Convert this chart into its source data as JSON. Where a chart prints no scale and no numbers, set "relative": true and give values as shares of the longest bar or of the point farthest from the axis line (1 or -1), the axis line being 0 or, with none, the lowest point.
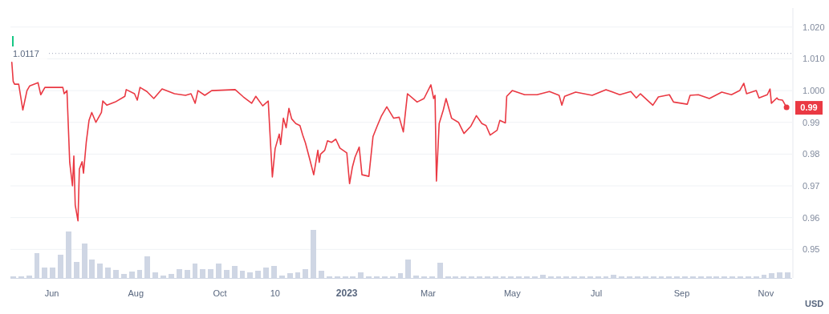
{
  "chart_data": [
    {
      "type": "line",
      "color": "#ea3943",
      "ylabel": "USD",
      "x": [
        "2022-05-03",
        "2022-05-04",
        "2022-05-05",
        "2022-05-08",
        "2022-05-11",
        "2022-05-14",
        "2022-05-16",
        "2022-05-22",
        "2022-05-24",
        "2022-05-27",
        "2022-06-09",
        "2022-06-10",
        "2022-06-12",
        "2022-06-14",
        "2022-06-16",
        "2022-06-17",
        "2022-06-18",
        "2022-06-20",
        "2022-06-21",
        "2022-06-23",
        "2022-06-24",
        "2022-06-26",
        "2022-06-28",
        "2022-06-30",
        "2022-07-03",
        "2022-07-07",
        "2022-07-08",
        "2022-07-11",
        "2022-07-17",
        "2022-07-24",
        "2022-07-25",
        "2022-07-31",
        "2022-08-02",
        "2022-08-04",
        "2022-08-09",
        "2022-08-14",
        "2022-08-20",
        "2022-08-29",
        "2022-09-06",
        "2022-09-10",
        "2022-09-13",
        "2022-09-15",
        "2022-09-20",
        "2022-09-25",
        "2022-10-12",
        "2022-10-18",
        "2022-10-24",
        "2022-10-27",
        "2022-11-01",
        "2022-11-05",
        "2022-11-08",
        "2022-11-10",
        "2022-11-13",
        "2022-11-14",
        "2022-11-16",
        "2022-11-18",
        "2022-11-20",
        "2022-11-22",
        "2022-11-25",
        "2022-11-28",
        "2022-11-30",
        "2022-12-02",
        "2022-12-05",
        "2022-12-08",
        "2022-12-11",
        "2022-12-12",
        "2022-12-13",
        "2022-12-16",
        "2022-12-18",
        "2022-12-21",
        "2022-12-24",
        "2022-12-27",
        "2023-01-01",
        "2023-01-03",
        "2023-01-05",
        "2023-01-07",
        "2023-01-10",
        "2023-01-12",
        "2023-01-17",
        "2023-01-20",
        "2023-01-23",
        "2023-01-26",
        "2023-01-30",
        "2023-02-04",
        "2023-02-08",
        "2023-02-11",
        "2023-02-14",
        "2023-02-21",
        "2023-02-26",
        "2023-03-03",
        "2023-03-05",
        "2023-03-06",
        "2023-03-07",
        "2023-03-09",
        "2023-03-12",
        "2023-03-14",
        "2023-03-18",
        "2023-03-23",
        "2023-03-27",
        "2023-04-01",
        "2023-04-05",
        "2023-04-09",
        "2023-04-12",
        "2023-04-15",
        "2023-04-20",
        "2023-04-22",
        "2023-04-26",
        "2023-04-27",
        "2023-05-01",
        "2023-05-10",
        "2023-05-19",
        "2023-05-28",
        "2023-06-04",
        "2023-06-06",
        "2023-06-08",
        "2023-06-16",
        "2023-06-28",
        "2023-07-08",
        "2023-07-18",
        "2023-07-26",
        "2023-07-30",
        "2023-08-02",
        "2023-08-11",
        "2023-08-15",
        "2023-08-23",
        "2023-08-26",
        "2023-09-05",
        "2023-09-07",
        "2023-09-13",
        "2023-09-21",
        "2023-09-30",
        "2023-10-07",
        "2023-10-13",
        "2023-10-16",
        "2023-10-18",
        "2023-10-25",
        "2023-10-27",
        "2023-11-02",
        "2023-11-04",
        "2023-11-05",
        "2023-11-09",
        "2023-11-10",
        "2023-11-13",
        "2023-11-16"
      ],
      "values": [
        1.0089,
        1.0029,
        1.002,
        1.002,
        0.9939,
        1.0,
        1.0015,
        1.0025,
        0.9987,
        1.001,
        1.001,
        0.999,
        1.0,
        0.9774,
        0.97,
        0.9794,
        0.9639,
        0.959,
        0.9753,
        0.9776,
        0.974,
        0.9837,
        0.9906,
        0.9931,
        0.99,
        0.9931,
        0.9967,
        0.9954,
        0.9964,
        0.9982,
        1.0003,
        0.999,
        0.997,
        1.001,
        0.9997,
        0.9975,
        1.0005,
        0.999,
        0.9985,
        0.999,
        0.996,
        1.0,
        0.9985,
        1.0,
        1.0003,
        0.998,
        0.996,
        0.9982,
        0.9952,
        0.9967,
        0.9728,
        0.9817,
        0.9863,
        0.983,
        0.9913,
        0.9883,
        0.9944,
        0.9911,
        0.9896,
        0.989,
        0.986,
        0.9835,
        0.9786,
        0.9735,
        0.9812,
        0.9774,
        0.98,
        0.9812,
        0.9842,
        0.9837,
        0.9847,
        0.9819,
        0.9804,
        0.9707,
        0.9758,
        0.9791,
        0.9822,
        0.9735,
        0.973,
        0.9855,
        0.9888,
        0.9919,
        0.9949,
        0.9913,
        0.9916,
        0.987,
        0.999,
        0.9964,
        0.9975,
        1.0018,
        0.9975,
        0.9985,
        0.9715,
        0.9896,
        0.9939,
        0.9975,
        0.9913,
        0.99,
        0.9865,
        0.9888,
        0.9921,
        0.9896,
        0.989,
        0.986,
        0.9875,
        0.9906,
        0.9898,
        0.9982,
        1.0,
        0.9987,
        0.9987,
        0.9997,
        0.9985,
        0.9954,
        0.9982,
        0.9995,
        0.9985,
        1.0003,
        0.9987,
        0.9997,
        0.9977,
        0.999,
        0.9954,
        0.998,
        0.9987,
        0.9964,
        0.9957,
        0.9985,
        0.9987,
        0.9975,
        0.9995,
        0.9987,
        1.0,
        1.0023,
        0.999,
        1.0,
        0.9977,
        0.9987,
        1.0005,
        0.996,
        0.9977,
        0.9972,
        0.997,
        0.9947
      ],
      "xlim": [
        "2022-05-02",
        "2023-11-20"
      ],
      "xticks": [
        {
          "value": "2022-06-01",
          "label": "Jun"
        },
        {
          "value": "2022-08-01",
          "label": "Aug"
        },
        {
          "value": "2022-10-01",
          "label": "Oct"
        },
        {
          "value": "2022-11-10",
          "label": "10"
        },
        {
          "value": "2023-01-01",
          "label": "2023"
        },
        {
          "value": "2023-03-01",
          "label": "Mar"
        },
        {
          "value": "2023-05-01",
          "label": "May"
        },
        {
          "value": "2023-07-01",
          "label": "Jul"
        },
        {
          "value": "2023-09-01",
          "label": "Sep"
        },
        {
          "value": "2023-11-01",
          "label": "Nov"
        }
      ],
      "ylim": [
        0.941,
        1.026
      ],
      "yticks": [
        0.95,
        0.96,
        0.97,
        0.98,
        0.99,
        {
          "value": 1.0,
          "label": "1.000"
        },
        {
          "value": 1.01,
          "label": "1.010"
        },
        {
          "value": 1.02,
          "label": "1.020"
        }
      ],
      "grid": "y",
      "ref_lines": [
        {
          "axis": "y",
          "value": 1.0117,
          "label": "1.0117",
          "color": "#a1a7bb",
          "line_style": "dotted"
        }
      ],
      "annotations": [
        {
          "text": "0.99",
          "x": "2023-11-16",
          "y": 0.9947
        }
      ]
    },
    {
      "type": "bar",
      "relative": true,
      "color": "#cfd6e4",
      "categories": [
        null,
        null,
        null,
        null,
        null,
        null,
        null,
        null,
        null,
        null,
        null,
        null,
        null,
        null,
        null,
        null,
        null,
        null,
        null,
        null,
        null,
        null,
        null,
        null,
        null,
        null,
        null,
        null,
        null,
        null,
        null,
        null,
        null,
        null,
        null,
        null,
        null,
        null,
        null,
        null,
        null,
        null,
        null,
        null,
        null,
        null,
        null,
        null,
        null,
        null,
        null,
        null,
        null,
        null,
        null,
        null,
        null,
        null,
        null,
        null,
        null,
        null,
        null,
        null,
        null,
        null,
        null,
        null,
        null,
        null,
        null,
        null,
        null,
        null,
        null,
        null,
        null,
        null,
        null,
        null,
        null,
        null,
        null,
        null,
        null,
        null,
        null,
        null,
        null,
        null,
        null,
        null,
        null,
        null,
        null,
        null,
        null,
        null,
        null
      ],
      "values": [
        0.04,
        0.04,
        0.05,
        0.52,
        0.21,
        0.22,
        0.48,
        0.96,
        0.34,
        0.71,
        0.38,
        0.3,
        0.22,
        0.16,
        0.08,
        0.14,
        0.16,
        0.45,
        0.11,
        0.05,
        0.08,
        0.18,
        0.16,
        0.3,
        0.19,
        0.19,
        0.3,
        0.16,
        0.25,
        0.15,
        0.11,
        0.15,
        0.21,
        0.25,
        0.05,
        0.1,
        0.11,
        0.18,
        1.0,
        0.15,
        0.04,
        0.04,
        0.04,
        0.04,
        0.11,
        0.04,
        0.04,
        0.04,
        0.04,
        0.1,
        0.38,
        0.05,
        0.04,
        0.04,
        0.32,
        0.04,
        0.04,
        0.04,
        0.04,
        0.04,
        0.04,
        0.04,
        0.04,
        0.04,
        0.04,
        0.04,
        0.04,
        0.07,
        0.04,
        0.04,
        0.04,
        0.04,
        0.04,
        0.04,
        0.04,
        0.04,
        0.07,
        0.04,
        0.04,
        0.04,
        0.04,
        0.04,
        0.04,
        0.04,
        0.04,
        0.04,
        0.04,
        0.04,
        0.04,
        0.04,
        0.04,
        0.04,
        0.04,
        0.04,
        0.04,
        0.07,
        0.1,
        0.11,
        0.11
      ]
    }
  ]
}
